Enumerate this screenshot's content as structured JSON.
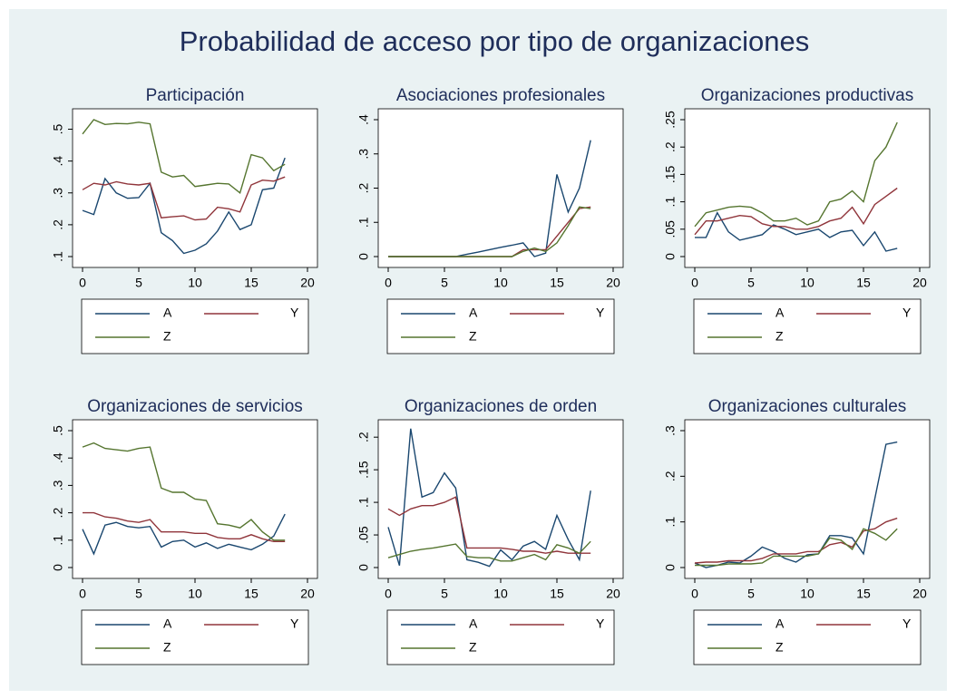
{
  "title": "Probabilidad de acceso por tipo de organizaciones",
  "chart_data": [
    {
      "type": "line",
      "title": "Participación",
      "x": [
        0,
        1,
        2,
        3,
        4,
        5,
        6,
        7,
        8,
        9,
        10,
        11,
        12,
        13,
        14,
        15,
        16,
        17,
        18
      ],
      "xlim": [
        0,
        20
      ],
      "xticks": [
        0,
        5,
        10,
        15,
        20
      ],
      "ylim": [
        0.1,
        0.53
      ],
      "yticks": [
        {
          "value": 0.1,
          "label": ".1"
        },
        {
          "value": 0.2,
          "label": ".2"
        },
        {
          "value": 0.3,
          "label": ".3"
        },
        {
          "value": 0.4,
          "label": ".4"
        },
        {
          "value": 0.5,
          "label": ".5"
        }
      ],
      "series": [
        {
          "name": "A",
          "color": "#1a476f",
          "values": [
            0.245,
            0.232,
            0.345,
            0.3,
            0.283,
            0.285,
            0.33,
            0.175,
            0.15,
            0.11,
            0.12,
            0.14,
            0.18,
            0.24,
            0.185,
            0.2,
            0.31,
            0.315,
            0.41
          ]
        },
        {
          "name": "Y",
          "color": "#90353b",
          "values": [
            0.31,
            0.33,
            0.325,
            0.335,
            0.328,
            0.325,
            0.33,
            0.222,
            0.225,
            0.228,
            0.215,
            0.218,
            0.255,
            0.25,
            0.24,
            0.325,
            0.34,
            0.337,
            0.35
          ]
        },
        {
          "name": "Z",
          "color": "#55752f",
          "values": [
            0.485,
            0.53,
            0.515,
            0.518,
            0.517,
            0.522,
            0.517,
            0.365,
            0.35,
            0.355,
            0.32,
            0.325,
            0.33,
            0.328,
            0.3,
            0.42,
            0.41,
            0.37,
            0.39
          ]
        }
      ]
    },
    {
      "type": "line",
      "title": "Asociaciones profesionales",
      "x": [
        0,
        1,
        2,
        3,
        4,
        5,
        6,
        7,
        8,
        9,
        10,
        11,
        12,
        13,
        14,
        15,
        16,
        17,
        18
      ],
      "xlim": [
        0,
        20
      ],
      "xticks": [
        0,
        5,
        10,
        15,
        20
      ],
      "ylim": [
        0,
        0.4
      ],
      "yticks": [
        0,
        {
          "value": 0.1,
          "label": ".1"
        },
        {
          "value": 0.2,
          "label": ".2"
        },
        {
          "value": 0.3,
          "label": ".3"
        },
        {
          "value": 0.4,
          "label": ".4"
        }
      ],
      "series": [
        {
          "name": "A",
          "color": "#1a476f",
          "values": [
            0,
            0,
            0,
            0,
            0,
            0,
            0,
            0.007,
            0.013,
            0.02,
            0.027,
            0.033,
            0.04,
            0,
            0.01,
            0.24,
            0.13,
            0.2,
            0.34
          ]
        },
        {
          "name": "Y",
          "color": "#90353b",
          "values": [
            0,
            0,
            0,
            0,
            0,
            0,
            0,
            0,
            0,
            0,
            0,
            0,
            0.02,
            0.02,
            0.02,
            0.06,
            0.1,
            0.14,
            0.145
          ]
        },
        {
          "name": "Z",
          "color": "#55752f",
          "values": [
            0,
            0,
            0,
            0,
            0,
            0,
            0,
            0,
            0,
            0,
            0,
            0,
            0.015,
            0.025,
            0.015,
            0.04,
            0.09,
            0.145,
            0.14
          ]
        }
      ]
    },
    {
      "type": "line",
      "title": "Organizaciones productivas",
      "x": [
        0,
        1,
        2,
        3,
        4,
        5,
        6,
        7,
        8,
        9,
        10,
        11,
        12,
        13,
        14,
        15,
        16,
        17,
        18
      ],
      "xlim": [
        0,
        20
      ],
      "xticks": [
        0,
        5,
        10,
        15,
        20
      ],
      "ylim": [
        0,
        0.25
      ],
      "yticks": [
        0,
        {
          "value": 0.05,
          "label": ".05"
        },
        {
          "value": 0.1,
          "label": ".1"
        },
        {
          "value": 0.15,
          "label": ".15"
        },
        {
          "value": 0.2,
          "label": ".2"
        },
        {
          "value": 0.25,
          "label": ".25"
        }
      ],
      "series": [
        {
          "name": "A",
          "color": "#1a476f",
          "values": [
            0.035,
            0.035,
            0.08,
            0.045,
            0.03,
            0.035,
            0.04,
            0.058,
            0.05,
            0.04,
            0.045,
            0.05,
            0.035,
            0.045,
            0.048,
            0.02,
            0.045,
            0.01,
            0.015
          ]
        },
        {
          "name": "Y",
          "color": "#90353b",
          "values": [
            0.04,
            0.065,
            0.065,
            0.07,
            0.075,
            0.073,
            0.06,
            0.055,
            0.055,
            0.05,
            0.05,
            0.055,
            0.065,
            0.07,
            0.09,
            0.06,
            0.095,
            0.11,
            0.125
          ]
        },
        {
          "name": "Z",
          "color": "#55752f",
          "values": [
            0.055,
            0.08,
            0.085,
            0.09,
            0.092,
            0.09,
            0.08,
            0.065,
            0.065,
            0.07,
            0.058,
            0.065,
            0.1,
            0.105,
            0.12,
            0.1,
            0.175,
            0.2,
            0.245
          ]
        }
      ]
    },
    {
      "type": "line",
      "title": "Organizaciones de servicios",
      "x": [
        0,
        1,
        2,
        3,
        4,
        5,
        6,
        7,
        8,
        9,
        10,
        11,
        12,
        13,
        14,
        15,
        16,
        17,
        18
      ],
      "xlim": [
        0,
        20
      ],
      "xticks": [
        0,
        5,
        10,
        15,
        20
      ],
      "ylim": [
        0,
        0.5
      ],
      "yticks": [
        0,
        {
          "value": 0.1,
          "label": ".1"
        },
        {
          "value": 0.2,
          "label": ".2"
        },
        {
          "value": 0.3,
          "label": ".3"
        },
        {
          "value": 0.4,
          "label": ".4"
        },
        {
          "value": 0.5,
          "label": ".5"
        }
      ],
      "series": [
        {
          "name": "A",
          "color": "#1a476f",
          "values": [
            0.14,
            0.05,
            0.155,
            0.165,
            0.15,
            0.145,
            0.15,
            0.075,
            0.095,
            0.1,
            0.075,
            0.09,
            0.07,
            0.085,
            0.075,
            0.065,
            0.085,
            0.115,
            0.195
          ]
        },
        {
          "name": "Y",
          "color": "#90353b",
          "values": [
            0.2,
            0.2,
            0.185,
            0.18,
            0.17,
            0.165,
            0.175,
            0.13,
            0.13,
            0.13,
            0.125,
            0.125,
            0.11,
            0.105,
            0.105,
            0.12,
            0.105,
            0.095,
            0.095
          ]
        },
        {
          "name": "Z",
          "color": "#55752f",
          "values": [
            0.44,
            0.455,
            0.435,
            0.43,
            0.425,
            0.435,
            0.44,
            0.29,
            0.275,
            0.275,
            0.25,
            0.245,
            0.16,
            0.155,
            0.145,
            0.175,
            0.13,
            0.1,
            0.1
          ]
        }
      ]
    },
    {
      "type": "line",
      "title": "Organizaciones de orden",
      "x": [
        0,
        1,
        2,
        3,
        4,
        5,
        6,
        7,
        8,
        9,
        10,
        11,
        12,
        13,
        14,
        15,
        16,
        17,
        18
      ],
      "xlim": [
        0,
        20
      ],
      "xticks": [
        0,
        5,
        10,
        15,
        20
      ],
      "ylim": [
        0,
        0.21
      ],
      "yticks": [
        0,
        {
          "value": 0.05,
          "label": ".05"
        },
        {
          "value": 0.1,
          "label": ".1"
        },
        {
          "value": 0.15,
          "label": ".15"
        },
        {
          "value": 0.2,
          "label": ".2"
        }
      ],
      "series": [
        {
          "name": "A",
          "color": "#1a476f",
          "values": [
            0.062,
            0.003,
            0.213,
            0.108,
            0.115,
            0.145,
            0.122,
            0.012,
            0.008,
            0.002,
            0.027,
            0.012,
            0.033,
            0.04,
            0.028,
            0.08,
            0.043,
            0.012,
            0.118
          ]
        },
        {
          "name": "Y",
          "color": "#90353b",
          "values": [
            0.09,
            0.08,
            0.09,
            0.095,
            0.095,
            0.1,
            0.108,
            0.03,
            0.03,
            0.03,
            0.03,
            0.028,
            0.025,
            0.025,
            0.022,
            0.025,
            0.022,
            0.022,
            0.022
          ]
        },
        {
          "name": "Z",
          "color": "#55752f",
          "values": [
            0.015,
            0.02,
            0.025,
            0.028,
            0.03,
            0.033,
            0.036,
            0.017,
            0.015,
            0.015,
            0.01,
            0.01,
            0.015,
            0.02,
            0.012,
            0.035,
            0.03,
            0.022,
            0.04
          ]
        }
      ]
    },
    {
      "type": "line",
      "title": "Organizaciones culturales",
      "x": [
        0,
        1,
        2,
        3,
        4,
        5,
        6,
        7,
        8,
        9,
        10,
        11,
        12,
        13,
        14,
        15,
        16,
        17,
        18
      ],
      "xlim": [
        0,
        20
      ],
      "xticks": [
        0,
        5,
        10,
        15,
        20
      ],
      "ylim": [
        0,
        0.3
      ],
      "yticks": [
        0,
        {
          "value": 0.1,
          "label": ".1"
        },
        {
          "value": 0.2,
          "label": ".2"
        },
        {
          "value": 0.3,
          "label": ".3"
        }
      ],
      "series": [
        {
          "name": "A",
          "color": "#1a476f",
          "values": [
            0.01,
            0,
            0.005,
            0.012,
            0.01,
            0.025,
            0.045,
            0.035,
            0.02,
            0.012,
            0.028,
            0.03,
            0.07,
            0.07,
            0.065,
            0.03,
            0.15,
            0.27,
            0.275
          ]
        },
        {
          "name": "Y",
          "color": "#90353b",
          "values": [
            0.01,
            0.012,
            0.012,
            0.015,
            0.015,
            0.015,
            0.02,
            0.03,
            0.03,
            0.03,
            0.035,
            0.035,
            0.05,
            0.055,
            0.045,
            0.08,
            0.085,
            0.1,
            0.108
          ]
        },
        {
          "name": "Z",
          "color": "#55752f",
          "values": [
            0.005,
            0.005,
            0.005,
            0.008,
            0.008,
            0.008,
            0.01,
            0.025,
            0.025,
            0.025,
            0.025,
            0.03,
            0.065,
            0.06,
            0.04,
            0.085,
            0.075,
            0.06,
            0.085
          ]
        }
      ]
    }
  ]
}
